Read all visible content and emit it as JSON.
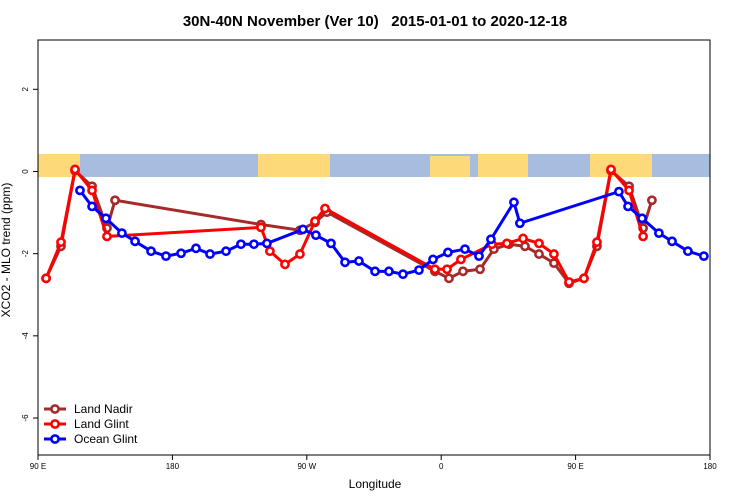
{
  "chart_data": {
    "type": "line",
    "title": "30N-40N November (Ver 10)   2015-01-01 to 2020-12-18",
    "xlabel": "Longitude",
    "ylabel": "XCO2 - MLO trend (ppm)",
    "xlim": [
      90,
      540
    ],
    "ylim": [
      -6.9,
      3.2
    ],
    "xticks": [
      {
        "value": 90,
        "label": "90 E"
      },
      180,
      {
        "value": 270,
        "label": "90 W"
      },
      {
        "value": 360,
        "label": "0"
      },
      {
        "value": 450,
        "label": "90 E"
      },
      {
        "value": 540,
        "label": "180"
      }
    ],
    "yticks": [
      -6,
      -4,
      -2,
      0,
      2
    ],
    "legend": "bottom-left",
    "series": [
      {
        "name": "Land Nadir",
        "color": "#a52a2a",
        "x": [
          95.4,
          105.4,
          114.8,
          126.2,
          136.2,
          141.6,
          239.3,
          265.4,
          275.5,
          283.5,
          355.8,
          365.2,
          374.6,
          386.0,
          395.3,
          405.4,
          416.1,
          425.5,
          435.5,
          445.6,
          455.6,
          464.3,
          473.7,
          485.8,
          495.2,
          501.1
        ],
        "values": [
          -2.6,
          -1.82,
          0.02,
          -0.36,
          -1.38,
          -0.7,
          -1.29,
          -1.43,
          -1.24,
          -0.99,
          -2.43,
          -2.6,
          -2.43,
          -2.38,
          -1.89,
          -1.77,
          -1.82,
          -2.01,
          -2.23,
          -2.72,
          -2.6,
          -1.82,
          0.02,
          -0.36,
          -1.38,
          -0.7
        ]
      },
      {
        "name": "Land Glint",
        "color": "#ff0000",
        "x": [
          95.4,
          105.4,
          114.8,
          126.2,
          136.2,
          239.3,
          245.3,
          255.4,
          265.4,
          275.5,
          282.2,
          355.8,
          363.9,
          373.2,
          394.0,
          404.0,
          414.8,
          425.5,
          435.5,
          445.6,
          455.6,
          464.3,
          473.7,
          485.8,
          495.2
        ],
        "values": [
          -2.6,
          -1.72,
          0.05,
          -0.46,
          -1.58,
          -1.36,
          -1.94,
          -2.26,
          -2.01,
          -1.21,
          -0.9,
          -2.38,
          -2.38,
          -2.14,
          -1.77,
          -1.75,
          -1.63,
          -1.75,
          -2.01,
          -2.69,
          -2.6,
          -1.72,
          0.05,
          -0.46,
          -1.58
        ]
      },
      {
        "name": "Ocean Glint",
        "color": "#0000ff",
        "x": [
          118.1,
          126.2,
          135.5,
          146.2,
          155.0,
          165.7,
          175.7,
          185.8,
          195.8,
          205.2,
          215.9,
          225.9,
          234.6,
          243.3,
          267.4,
          276.1,
          286.2,
          295.6,
          304.9,
          315.7,
          325.0,
          334.4,
          345.1,
          354.5,
          364.5,
          375.9,
          385.3,
          393.3,
          408.7,
          412.7,
          479.0,
          485.1,
          494.5,
          505.8,
          514.6,
          525.2,
          535.9
        ],
        "values": [
          -0.46,
          -0.85,
          -1.14,
          -1.5,
          -1.7,
          -1.94,
          -2.06,
          -1.99,
          -1.87,
          -2.01,
          -1.94,
          -1.77,
          -1.77,
          -1.75,
          -1.41,
          -1.55,
          -1.75,
          -2.21,
          -2.18,
          -2.43,
          -2.43,
          -2.5,
          -2.4,
          -2.14,
          -1.97,
          -1.89,
          -2.06,
          -1.65,
          -0.75,
          -1.26,
          -0.49,
          -0.85,
          -1.14,
          -1.5,
          -1.7,
          -1.94,
          -2.06
        ]
      }
    ]
  }
}
